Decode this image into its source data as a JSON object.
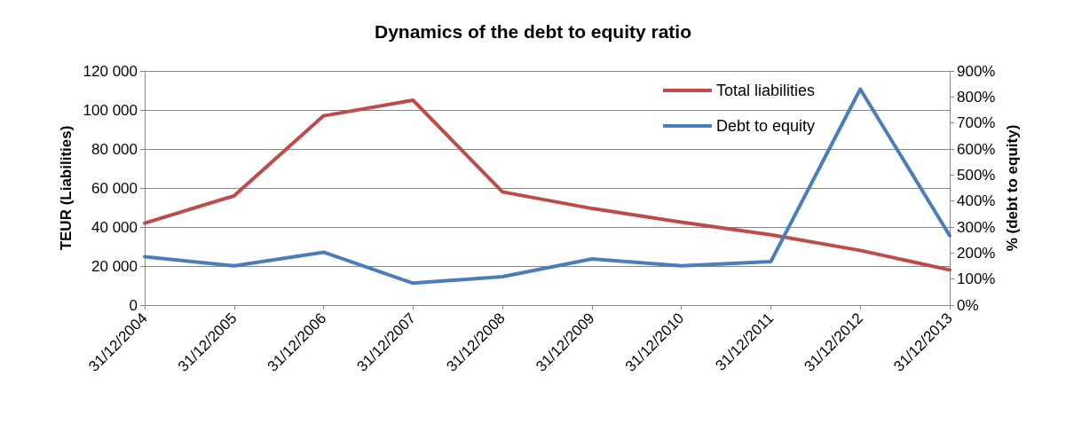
{
  "chart_data": {
    "type": "line",
    "title": "Dynamics of the debt to equity ratio",
    "ylabel": "TEUR (Liabilities)",
    "y2label": "% (debt to equity)",
    "categories": [
      "31/12/2004",
      "31/12/2005",
      "31/12/2006",
      "31/12/2007",
      "31/12/2008",
      "31/12/2009",
      "31/12/2010",
      "31/12/2011",
      "31/12/2012",
      "31/12/2013"
    ],
    "series": [
      {
        "name": "Total liabilities",
        "color": "#be4b48",
        "values": [
          42000,
          56000,
          97000,
          105000,
          58000,
          49500,
          42500,
          36000,
          28000,
          18000
        ]
      },
      {
        "name": "Debt to equity",
        "color": "#4a7ebb",
        "axis": "y2",
        "values": [
          186,
          151,
          203,
          84,
          109,
          177,
          151,
          167,
          830,
          267
        ]
      }
    ],
    "ylim": [
      0,
      120000
    ],
    "yticks": [
      {
        "value": 0,
        "label": "0"
      },
      {
        "value": 20000,
        "label": "20 000"
      },
      {
        "value": 40000,
        "label": "40 000"
      },
      {
        "value": 60000,
        "label": "60 000"
      },
      {
        "value": 80000,
        "label": "80 000"
      },
      {
        "value": 100000,
        "label": "100 000"
      },
      {
        "value": 120000,
        "label": "120 000"
      }
    ],
    "y2lim": [
      0,
      900
    ],
    "y2ticks": [
      {
        "value": 0,
        "label": "0%"
      },
      {
        "value": 100,
        "label": "100%"
      },
      {
        "value": 200,
        "label": "200%"
      },
      {
        "value": 300,
        "label": "300%"
      },
      {
        "value": 400,
        "label": "400%"
      },
      {
        "value": 500,
        "label": "500%"
      },
      {
        "value": 600,
        "label": "600%"
      },
      {
        "value": 700,
        "label": "700%"
      },
      {
        "value": 800,
        "label": "800%"
      },
      {
        "value": 900,
        "label": "900%"
      }
    ],
    "grid": "y",
    "legend": "top right",
    "marker": "none",
    "line_style": "solid"
  }
}
